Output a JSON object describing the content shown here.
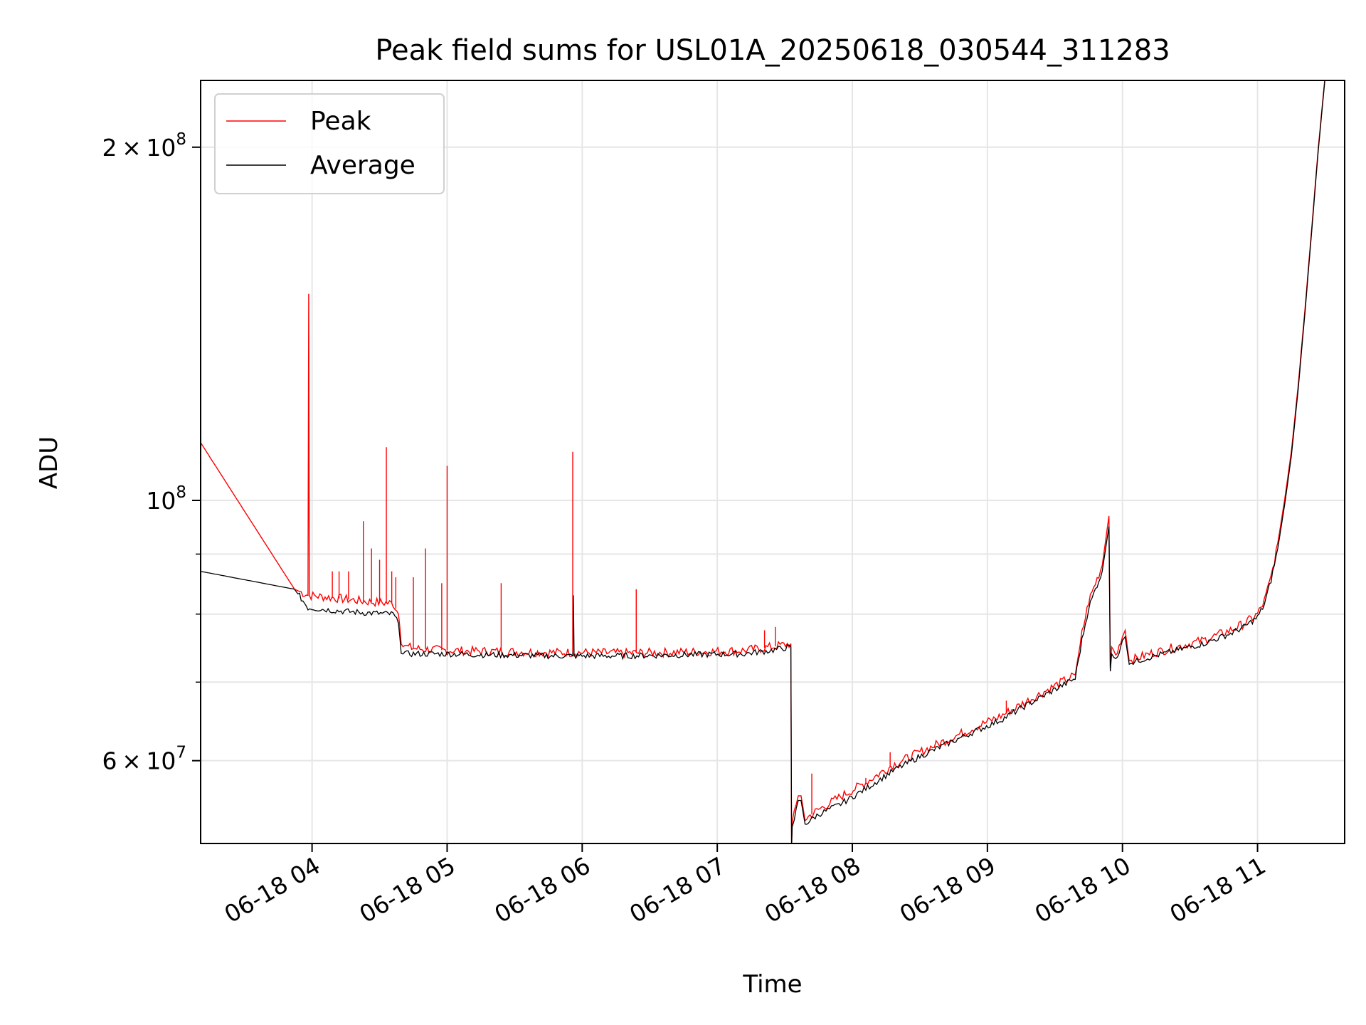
{
  "chart_data": {
    "type": "line",
    "title": "Peak field sums for USL01A_20250618_030544_311283",
    "xlabel": "Time",
    "ylabel": "ADU",
    "x_unit": "time of day (hours, 2025-06-18)",
    "xlim": [
      3.175,
      11.645
    ],
    "ylim": [
      51000000,
      228000000
    ],
    "y_scale": "log",
    "grid": true,
    "legend_position": "upper-left",
    "x_ticks": [
      {
        "value": 4,
        "label": "06-18 04"
      },
      {
        "value": 5,
        "label": "06-18 05"
      },
      {
        "value": 6,
        "label": "06-18 06"
      },
      {
        "value": 7,
        "label": "06-18 07"
      },
      {
        "value": 8,
        "label": "06-18 08"
      },
      {
        "value": 9,
        "label": "06-18 09"
      },
      {
        "value": 10,
        "label": "06-18 10"
      },
      {
        "value": 11,
        "label": "06-18 11"
      }
    ],
    "y_ticks": [
      {
        "value": 60000000,
        "mantissa": "6",
        "exponent": "7",
        "label": "6 × 10^7"
      },
      {
        "value": 100000000,
        "mantissa": "",
        "exponent": "8",
        "label": "10^8"
      },
      {
        "value": 200000000,
        "mantissa": "2",
        "exponent": "8",
        "label": "2 × 10^8"
      }
    ],
    "y_minor_ticks": [
      70000000,
      80000000,
      90000000
    ],
    "series": [
      {
        "name": "Peak",
        "color": "#ff0000",
        "x": [
          3.175,
          3.87,
          3.97,
          3.975,
          3.98,
          4.2,
          4.4,
          4.6,
          4.64,
          4.66,
          4.7,
          4.8,
          5.0,
          5.2,
          5.5,
          5.8,
          6.0,
          6.3,
          6.6,
          6.9,
          7.2,
          7.4,
          7.545,
          7.55,
          7.555,
          7.6,
          7.62,
          7.65,
          7.75,
          7.9,
          8.1,
          8.3,
          8.5,
          8.7,
          8.9,
          9.1,
          9.3,
          9.5,
          9.65,
          9.7,
          9.75,
          9.8,
          9.85,
          9.9,
          9.91,
          9.92,
          9.95,
          10.0,
          10.02,
          10.05,
          10.08,
          10.2,
          10.4,
          10.6,
          10.8,
          10.9,
          11.0,
          11.05,
          11.1,
          11.15,
          11.2,
          11.25,
          11.3,
          11.35,
          11.4,
          11.45,
          11.5
        ],
        "y": [
          112000000,
          84000000,
          83000000,
          150000000,
          83000000,
          82500000,
          82000000,
          81700000,
          80000000,
          76000000,
          75000000,
          74700000,
          74500000,
          74400000,
          74300000,
          74200000,
          74200000,
          74100000,
          74200000,
          74300000,
          74500000,
          75000000,
          75500000,
          51000000,
          53000000,
          56000000,
          56000000,
          53500000,
          54500000,
          55800000,
          57500000,
          59500000,
          61000000,
          62500000,
          64000000,
          65500000,
          67500000,
          69500000,
          71000000,
          77000000,
          82000000,
          85000000,
          88000000,
          97000000,
          72000000,
          75000000,
          74000000,
          76500000,
          77500000,
          73000000,
          73200000,
          74000000,
          75000000,
          76000000,
          77500000,
          78500000,
          80000000,
          82000000,
          86000000,
          92000000,
          100000000,
          110000000,
          125000000,
          145000000,
          170000000,
          200000000,
          230000000
        ]
      },
      {
        "name": "Average",
        "color": "#000000",
        "x": [
          3.175,
          3.87,
          3.97,
          4.2,
          4.4,
          4.6,
          4.64,
          4.66,
          4.7,
          4.8,
          5.0,
          5.2,
          5.5,
          5.8,
          5.93,
          5.935,
          5.94,
          6.0,
          6.3,
          6.6,
          6.9,
          7.2,
          7.4,
          7.545,
          7.55,
          7.555,
          7.6,
          7.62,
          7.65,
          7.75,
          7.9,
          8.1,
          8.3,
          8.5,
          8.7,
          8.9,
          9.1,
          9.3,
          9.5,
          9.65,
          9.7,
          9.75,
          9.8,
          9.85,
          9.9,
          9.91,
          9.92,
          9.95,
          10.0,
          10.02,
          10.05,
          10.08,
          10.2,
          10.4,
          10.6,
          10.8,
          10.9,
          11.0,
          11.05,
          11.1,
          11.15,
          11.2,
          11.25,
          11.3,
          11.35,
          11.4,
          11.45,
          11.5
        ],
        "y": [
          87000000,
          84000000,
          81000000,
          80500000,
          80200000,
          80000000,
          78500000,
          74500000,
          74000000,
          74000000,
          74000000,
          73900000,
          73800000,
          73700000,
          73700000,
          83000000,
          73700000,
          73700000,
          73700000,
          73800000,
          73900000,
          74000000,
          74500000,
          75000000,
          50500000,
          52500000,
          55500000,
          55500000,
          53000000,
          54000000,
          55000000,
          56800000,
          58800000,
          60500000,
          62000000,
          63500000,
          65000000,
          67000000,
          69000000,
          70500000,
          76000000,
          81000000,
          84000000,
          87000000,
          95000000,
          71500000,
          74000000,
          73000000,
          76000000,
          76500000,
          72500000,
          72800000,
          73500000,
          74500000,
          75500000,
          77000000,
          78000000,
          79500000,
          81500000,
          85500000,
          91000000,
          99000000,
          109000000,
          124000000,
          144000000,
          169000000,
          199000000,
          229000000
        ]
      }
    ],
    "spikes": {
      "x": [
        4.15,
        4.2,
        4.27,
        4.38,
        4.44,
        4.5,
        4.55,
        4.59,
        4.62,
        4.75,
        4.84,
        4.96,
        5.0,
        5.4,
        5.93,
        6.4,
        7.35,
        7.43,
        7.7,
        8.1,
        8.28,
        8.9,
        9.14
      ],
      "y": [
        87000000,
        87000000,
        87000000,
        96000000,
        91000000,
        89000000,
        111000000,
        87000000,
        86000000,
        86000000,
        91000000,
        85000000,
        107000000,
        85000000,
        110000000,
        84000000,
        77500000,
        78000000,
        58500000,
        58000000,
        61000000,
        64000000,
        67500000
      ]
    }
  }
}
